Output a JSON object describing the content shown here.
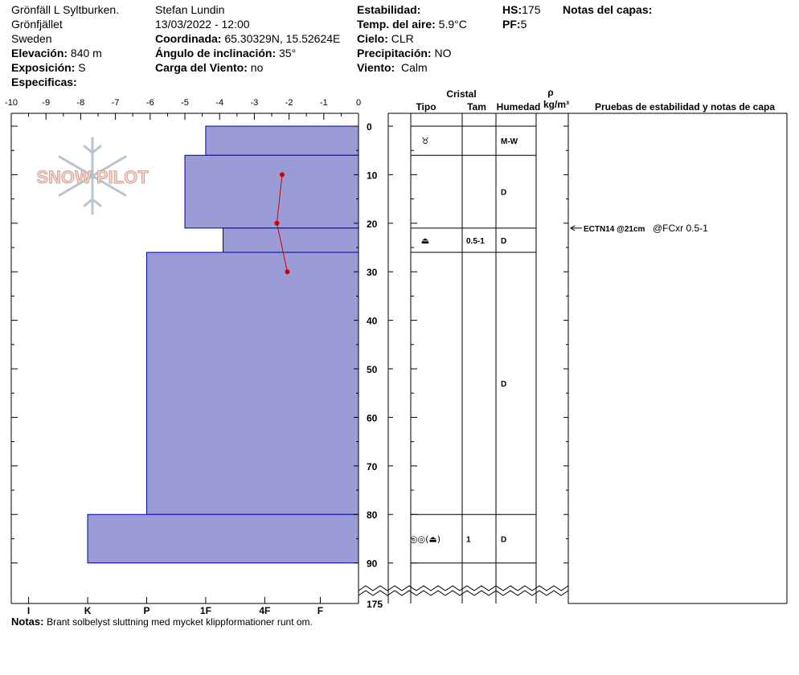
{
  "header": {
    "site_name": "Grönfäll L Syltburken.",
    "area": "Grönfjället",
    "country": "Sweden",
    "elevation_label": "Elevación:",
    "elevation_value": "840 m",
    "aspect_label": "Exposición:",
    "aspect_value": "S",
    "specifics_label": "Especificas:",
    "observer": "Stefan Lundin",
    "datetime": "13/03/2022 - 12:00",
    "coord_label": "Coordinada:",
    "coord_value": "65.30329N, 15.52624E",
    "slope_label": "Ángulo de inclinación:",
    "slope_value": "35°",
    "windload_label": "Carga del Viento:",
    "windload_value": "no",
    "stability_label": "Estabilidad:",
    "airtemp_label": "Temp. del aire:",
    "airtemp_value": "5.9°C",
    "sky_label": "Cielo:",
    "sky_value": "CLR",
    "precip_label": "Precipitación:",
    "precip_value": "NO",
    "wind_label": "Viento:",
    "wind_value": "Calm",
    "hs_label": "HS:",
    "hs_value": "175",
    "pf_label": "PF:",
    "pf_value": "5",
    "layer_notes_label": "Notas del capas:"
  },
  "notes": {
    "label": "Notas:",
    "text": "Brant solbelyst sluttning med mycket klippformationer runt om."
  },
  "logo_text": "SNOW PILOT",
  "table_headers": {
    "cristal": "Cristal",
    "tipo": "Tipo",
    "tam": "Tam",
    "humedad": "Humedad",
    "rho": "ρ",
    "density_unit": "kg/m³",
    "tests": "Pruebas de estabilidad y notas de capa"
  },
  "test_result": {
    "depth": 21,
    "label_bold": "ECTN14 @21cm",
    "label_rest": "@FCxr 0.5-1"
  },
  "colors": {
    "hardness_fill": "#9b9bd6",
    "hardness_stroke": "#0000aa",
    "temp_line": "#cc0000"
  },
  "chart_data": {
    "type": "snow-profile",
    "temperature_axis": {
      "label_ticks": [
        -10,
        -9,
        -8,
        -7,
        -6,
        -5,
        -4,
        -3,
        -2,
        -1,
        0
      ],
      "range": [
        -10,
        0
      ]
    },
    "depth_axis": {
      "ticks": [
        0,
        10,
        20,
        30,
        40,
        50,
        60,
        70,
        80,
        90
      ],
      "range": [
        0,
        90
      ],
      "break_label": "175"
    },
    "hardness_axis": {
      "labels": [
        "I",
        "K",
        "P",
        "1F",
        "4F",
        "F"
      ],
      "positions": [
        -9.5,
        -7.8,
        -6.1,
        -4.4,
        -2.7,
        -1.1
      ]
    },
    "layers": [
      {
        "top": 0,
        "bottom": 6,
        "hardness": -4.4,
        "tipo": "♉",
        "tam": "",
        "humedad": "M-W"
      },
      {
        "top": 6,
        "bottom": 21,
        "hardness": -5.0,
        "tipo": "",
        "tam": "",
        "humedad": "D"
      },
      {
        "top": 21,
        "bottom": 26,
        "hardness": -3.9,
        "tipo": "⏏",
        "tam": "0.5-1",
        "humedad": "D"
      },
      {
        "top": 26,
        "bottom": 80,
        "hardness": -6.1,
        "tipo": "",
        "tam": "",
        "humedad": "D"
      },
      {
        "top": 80,
        "bottom": 90,
        "hardness": -7.8,
        "tipo": "◎◎(⏏)",
        "tam": "1",
        "humedad": "D"
      }
    ],
    "temperature_profile": [
      {
        "depth": 10,
        "temp": -2.2
      },
      {
        "depth": 20,
        "temp": -2.35
      },
      {
        "depth": 30,
        "temp": -2.05
      }
    ]
  }
}
